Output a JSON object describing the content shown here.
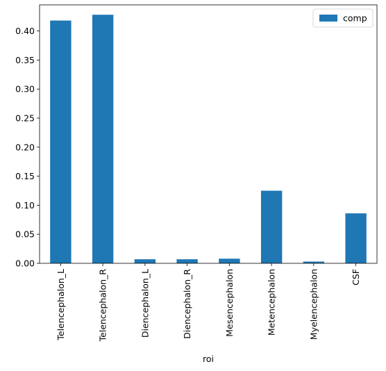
{
  "chart_data": {
    "type": "bar",
    "categories": [
      "Telencephalon_L",
      "Telencephalon_R",
      "Diencephalon_L",
      "Diencephalon_R",
      "Mesencephalon",
      "Metencephalon",
      "Myelencephalon",
      "CSF"
    ],
    "series": [
      {
        "name": "comp",
        "values": [
          0.418,
          0.428,
          0.007,
          0.007,
          0.008,
          0.125,
          0.003,
          0.086
        ]
      }
    ],
    "title": "",
    "xlabel": "roi",
    "ylabel": "",
    "ylim": [
      0,
      0.445
    ],
    "yticks": [
      0.0,
      0.05,
      0.1,
      0.15,
      0.2,
      0.25,
      0.3,
      0.35,
      0.4
    ],
    "ytick_labels": [
      "0.00",
      "0.05",
      "0.10",
      "0.15",
      "0.20",
      "0.25",
      "0.30",
      "0.35",
      "0.40"
    ],
    "grid": false,
    "legend": {
      "position": "top-right"
    },
    "colors": {
      "bar": "#1f77b4",
      "axis": "#000000"
    }
  }
}
